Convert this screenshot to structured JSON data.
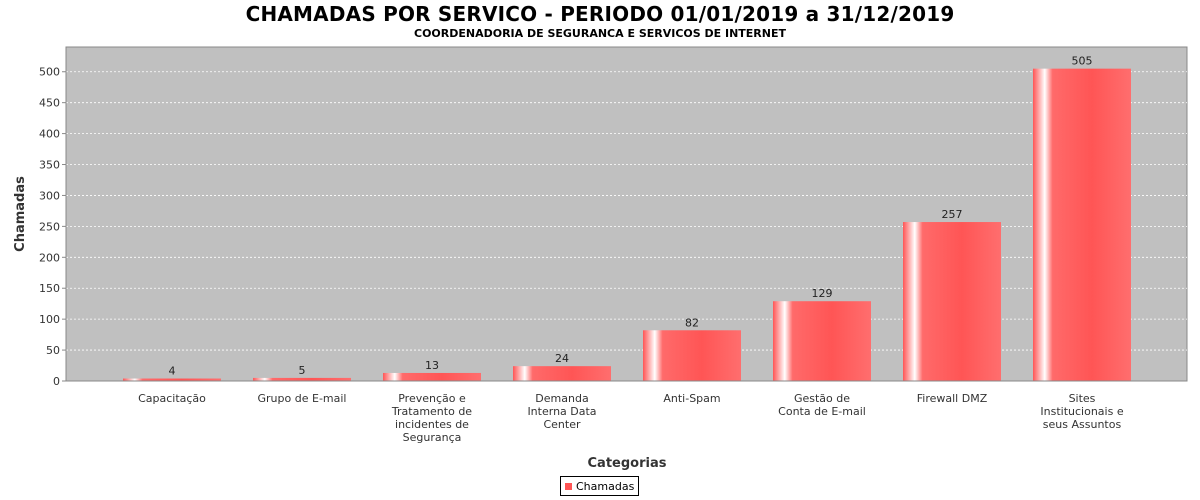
{
  "chart_data": {
    "type": "bar",
    "title": "CHAMADAS POR SERVICO - PERIODO 01/01/2019 a 31/12/2019",
    "subtitle": "COORDENADORIA DE SEGURANCA E SERVICOS DE INTERNET",
    "xlabel": "Categorias",
    "ylabel": "Chamadas",
    "ylim": [
      0,
      540
    ],
    "yticks": [
      0,
      50,
      100,
      150,
      200,
      250,
      300,
      350,
      400,
      450,
      500
    ],
    "grid": true,
    "legend_position": "bottom",
    "categories": [
      "Capacitação",
      "Grupo de E-mail",
      "Prevenção e\nTratamento de\nincidentes de\nSegurança",
      "Demanda\nInterna Data\nCenter",
      "Anti-Spam",
      "Gestão de\nConta de E-mail",
      "Firewall DMZ",
      "Sites\nInstitucionais e\nseus Assuntos"
    ],
    "series": [
      {
        "name": "Chamadas",
        "color": "#ff5555",
        "values": [
          4,
          5,
          13,
          24,
          82,
          129,
          257,
          505
        ]
      }
    ],
    "colors": {
      "plot_background": "#c0c0c0",
      "bar": "#ff5555",
      "gridline": "#ffffff"
    }
  }
}
